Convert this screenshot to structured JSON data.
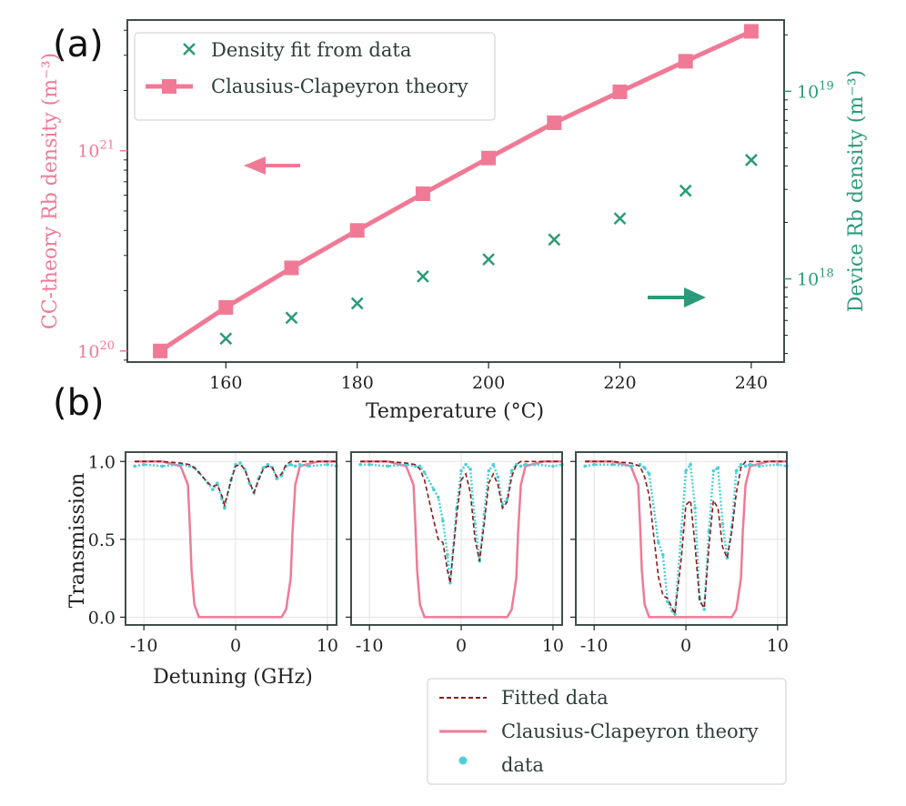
{
  "panel_labels": {
    "a": "(a)",
    "b": "(b)"
  },
  "colors": {
    "theory": "#f07a96",
    "fit": "#2b9a78",
    "frame": "#3f4f4a",
    "fitted_dashed": "#8b1a1a",
    "data_dots": "#4dcfd6"
  },
  "chart_data": [
    {
      "id": "panel-a",
      "type": "line",
      "xlabel": "Temperature (°C)",
      "xlim": [
        145,
        245
      ],
      "xticks": [
        160,
        180,
        200,
        220,
        240
      ],
      "xtick_labels": [
        "160",
        "180",
        "200",
        "220",
        "240"
      ],
      "left_axis": {
        "label": "CC-theory Rb density (m⁻³)",
        "scale": "log",
        "ylim": [
          8.8e+19,
          4.5e+21
        ],
        "ticks": [
          1e+20,
          1e+21
        ],
        "tick_labels": [
          {
            "base": "10",
            "exp": "20"
          },
          {
            "base": "10",
            "exp": "21"
          }
        ]
      },
      "right_axis": {
        "label": "Device Rb density (m⁻³)",
        "scale": "log",
        "ylim": [
          3.6e+17,
          2.4e+19
        ],
        "ticks": [
          1e+18,
          1e+19
        ],
        "tick_labels": [
          {
            "base": "10",
            "exp": "18"
          },
          {
            "base": "10",
            "exp": "19"
          }
        ]
      },
      "series": [
        {
          "name": "Density fit from data",
          "axis": "right",
          "marker": "x",
          "x": [
            160,
            170,
            180,
            190,
            200,
            210,
            220,
            230,
            240
          ],
          "values": [
            4.8e+17,
            6.2e+17,
            7.4e+17,
            1.03e+18,
            1.27e+18,
            1.62e+18,
            2.1e+18,
            2.95e+18,
            4.3e+18
          ]
        },
        {
          "name": "Clausius-Clapeyron theory",
          "axis": "left",
          "marker": "square",
          "x": [
            150,
            160,
            170,
            180,
            190,
            200,
            210,
            220,
            230,
            240
          ],
          "values": [
            1e+20,
            1.65e+20,
            2.6e+20,
            4e+20,
            6.1e+20,
            9.2e+20,
            1.38e+21,
            1.97e+21,
            2.8e+21,
            3.95e+21
          ]
        }
      ],
      "legend": "top-left"
    },
    {
      "id": "panel-b",
      "type": "line",
      "subplots": 3,
      "xlabel": "Detuning (GHz)",
      "ylabel": "Transmission",
      "xlim": [
        -12,
        11
      ],
      "ylim": [
        -0.05,
        1.06
      ],
      "xticks": [
        -10,
        0,
        10
      ],
      "xtick_labels": [
        "-10",
        "0",
        "10"
      ],
      "yticks": [
        0.0,
        0.5,
        1.0
      ],
      "ytick_labels": [
        "0.0",
        "0.5",
        "1.0"
      ],
      "x": [
        -11,
        -10,
        -8,
        -6,
        -5,
        -4.5,
        -4,
        -3,
        -2.5,
        -2,
        -1.5,
        -1.2,
        -0.5,
        0,
        0.5,
        1,
        1.5,
        2,
        2.5,
        3,
        3.5,
        4,
        4.5,
        5,
        5.5,
        6,
        6.5,
        7,
        8,
        10,
        11
      ],
      "theory_x": [
        -11,
        -8,
        -6,
        -5.2,
        -5,
        -4.8,
        -4.5,
        -4,
        4,
        5,
        5.5,
        6,
        6.2,
        6.5,
        7,
        9,
        11
      ],
      "theory_y": [
        1.0,
        1.0,
        0.97,
        0.85,
        0.6,
        0.3,
        0.08,
        0.0,
        0.0,
        0.0,
        0.05,
        0.25,
        0.55,
        0.85,
        0.97,
        1.0,
        1.0
      ],
      "panels": [
        {
          "fitted": [
            1.0,
            1.0,
            1.0,
            0.99,
            0.98,
            0.96,
            0.93,
            0.86,
            0.84,
            0.85,
            0.78,
            0.72,
            0.88,
            0.97,
            0.98,
            0.95,
            0.87,
            0.8,
            0.88,
            0.95,
            0.97,
            0.96,
            0.9,
            0.92,
            0.98,
            1.0,
            1.0,
            1.0,
            1.0,
            1.0,
            1.0
          ],
          "data": [
            0.97,
            0.98,
            0.97,
            0.98,
            0.97,
            0.96,
            0.93,
            0.86,
            0.82,
            0.86,
            0.76,
            0.7,
            0.88,
            0.98,
            0.99,
            0.95,
            0.86,
            0.8,
            0.89,
            0.96,
            0.98,
            0.96,
            0.89,
            0.91,
            0.97,
            0.98,
            0.97,
            0.98,
            0.97,
            0.98,
            0.97
          ]
        },
        {
          "fitted": [
            1.0,
            1.0,
            1.0,
            0.99,
            0.98,
            0.95,
            0.88,
            0.62,
            0.5,
            0.48,
            0.3,
            0.22,
            0.65,
            0.88,
            0.92,
            0.8,
            0.5,
            0.36,
            0.6,
            0.86,
            0.92,
            0.85,
            0.7,
            0.74,
            0.9,
            0.98,
            1.0,
            1.0,
            1.0,
            1.0,
            1.0
          ],
          "data": [
            0.98,
            0.98,
            0.97,
            0.98,
            0.97,
            0.97,
            0.93,
            0.82,
            0.77,
            0.62,
            0.4,
            0.22,
            0.7,
            0.94,
            0.98,
            0.95,
            0.6,
            0.36,
            0.66,
            0.94,
            0.98,
            0.9,
            0.72,
            0.76,
            0.94,
            0.98,
            0.97,
            0.98,
            0.98,
            0.97,
            0.98
          ]
        },
        {
          "fitted": [
            1.0,
            1.0,
            1.0,
            0.99,
            0.97,
            0.9,
            0.78,
            0.26,
            0.14,
            0.12,
            0.06,
            0.02,
            0.38,
            0.72,
            0.75,
            0.46,
            0.1,
            0.06,
            0.45,
            0.75,
            0.7,
            0.45,
            0.38,
            0.55,
            0.8,
            0.96,
            1.0,
            1.0,
            1.0,
            1.0,
            1.0
          ],
          "data": [
            0.97,
            0.98,
            0.98,
            0.97,
            0.98,
            0.96,
            0.92,
            0.48,
            0.4,
            0.1,
            0.04,
            0.02,
            0.55,
            0.94,
            0.98,
            0.7,
            0.12,
            0.05,
            0.55,
            0.94,
            0.96,
            0.6,
            0.38,
            0.58,
            0.94,
            0.98,
            0.97,
            0.98,
            0.97,
            0.98,
            0.97
          ]
        }
      ],
      "legend_entries": [
        "Fitted data",
        "Clausius-Clapeyron theory",
        "data"
      ],
      "legend": "bottom-right"
    }
  ]
}
